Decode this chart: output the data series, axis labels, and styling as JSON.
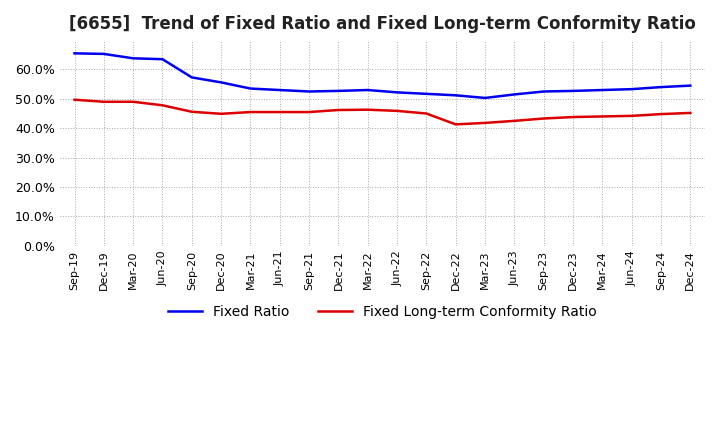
{
  "title": "[6655]  Trend of Fixed Ratio and Fixed Long-term Conformity Ratio",
  "x_labels": [
    "Sep-19",
    "Dec-19",
    "Mar-20",
    "Jun-20",
    "Sep-20",
    "Dec-20",
    "Mar-21",
    "Jun-21",
    "Sep-21",
    "Dec-21",
    "Mar-22",
    "Jun-22",
    "Sep-22",
    "Dec-22",
    "Mar-23",
    "Jun-23",
    "Sep-23",
    "Dec-23",
    "Mar-24",
    "Jun-24",
    "Sep-24",
    "Dec-24"
  ],
  "fixed_ratio": [
    0.655,
    0.653,
    0.638,
    0.635,
    0.573,
    0.556,
    0.535,
    0.53,
    0.525,
    0.527,
    0.53,
    0.522,
    0.517,
    0.512,
    0.503,
    0.515,
    0.525,
    0.527,
    0.53,
    0.533,
    0.54,
    0.545
  ],
  "fixed_lt_ratio": [
    0.497,
    0.49,
    0.49,
    0.478,
    0.456,
    0.449,
    0.455,
    0.455,
    0.455,
    0.462,
    0.463,
    0.459,
    0.45,
    0.413,
    0.418,
    0.425,
    0.433,
    0.438,
    0.44,
    0.442,
    0.448,
    0.452
  ],
  "fixed_ratio_color": "#0000ee",
  "fixed_lt_ratio_color": "#dd0000",
  "ylim": [
    0.0,
    0.7
  ],
  "yticks": [
    0.0,
    0.1,
    0.2,
    0.3,
    0.4,
    0.5,
    0.6
  ],
  "background_color": "#ffffff",
  "grid_color": "#aaaaaa",
  "title_fontsize": 12,
  "legend_fontsize": 10
}
